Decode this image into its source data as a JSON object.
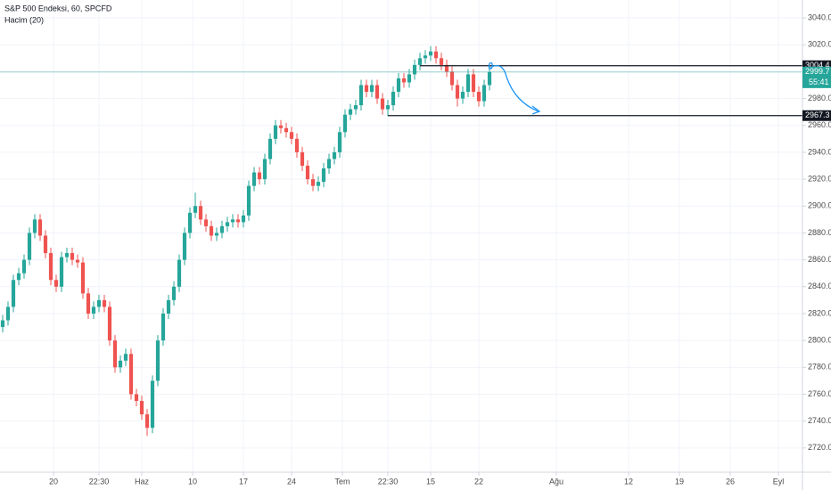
{
  "chart_data": {
    "type": "candlestick",
    "title": "S&P 500 Endeksi, 60, SPCFD",
    "subtitle": "Hacim (20)",
    "up_color": "#26a69a",
    "down_color": "#ef5350",
    "x": [
      0,
      1,
      2,
      3,
      4,
      5,
      6,
      7,
      8,
      9,
      10,
      11,
      12,
      13,
      14,
      15,
      16,
      17,
      18,
      19,
      20,
      21,
      22,
      23,
      24,
      25,
      26,
      27,
      28,
      29,
      30,
      31,
      32,
      33,
      34,
      35,
      36,
      37,
      38,
      39,
      40,
      41,
      42,
      43,
      44,
      45,
      46,
      47,
      48,
      49,
      50,
      51,
      52,
      53,
      54,
      55,
      56,
      57,
      58,
      59,
      60,
      61,
      62,
      63,
      64,
      65,
      66,
      67,
      68,
      69,
      70,
      71,
      72,
      73,
      74,
      75,
      76,
      77,
      78,
      79,
      80,
      81,
      82,
      83,
      84,
      85,
      86,
      87,
      88,
      89,
      90,
      91
    ],
    "open": [
      2810,
      2815,
      2825,
      2845,
      2850,
      2860,
      2880,
      2890,
      2878,
      2865,
      2845,
      2840,
      2862,
      2865,
      2860,
      2858,
      2835,
      2820,
      2825,
      2830,
      2825,
      2800,
      2780,
      2785,
      2790,
      2760,
      2755,
      2745,
      2735,
      2770,
      2800,
      2820,
      2830,
      2840,
      2860,
      2880,
      2895,
      2900,
      2890,
      2885,
      2878,
      2880,
      2885,
      2888,
      2890,
      2888,
      2893,
      2915,
      2925,
      2920,
      2935,
      2950,
      2960,
      2958,
      2955,
      2950,
      2940,
      2930,
      2920,
      2915,
      2918,
      2928,
      2935,
      2940,
      2955,
      2968,
      2972,
      2975,
      2990,
      2985,
      2990,
      2980,
      2972,
      2975,
      2985,
      2995,
      2992,
      2998,
      3005,
      3010,
      3012,
      3015,
      3010,
      3005,
      3000,
      2990,
      2980,
      2985,
      2998,
      2985,
      2978,
      2990
    ],
    "high": [
      2819,
      2829,
      2849,
      2854,
      2864,
      2884,
      2894,
      2894,
      2882,
      2869,
      2849,
      2866,
      2869,
      2869,
      2864,
      2862,
      2839,
      2829,
      2834,
      2834,
      2829,
      2804,
      2789,
      2794,
      2794,
      2764,
      2759,
      2749,
      2774,
      2804,
      2824,
      2834,
      2844,
      2864,
      2884,
      2899,
      2910,
      2904,
      2894,
      2889,
      2884,
      2889,
      2892,
      2894,
      2894,
      2897,
      2919,
      2929,
      2929,
      2939,
      2954,
      2964,
      2964,
      2962,
      2959,
      2954,
      2944,
      2934,
      2924,
      2922,
      2932,
      2939,
      2944,
      2959,
      2972,
      2976,
      2979,
      2994,
      2994,
      2994,
      2994,
      2984,
      2979,
      2989,
      2999,
      2999,
      3002,
      3009,
      3014,
      3016,
      3019,
      3019,
      3014,
      3009,
      3004,
      2994,
      2989,
      3002,
      3002,
      2989,
      2994,
      3004
    ],
    "low": [
      2806,
      2811,
      2821,
      2841,
      2846,
      2856,
      2876,
      2874,
      2861,
      2841,
      2836,
      2836,
      2858,
      2856,
      2854,
      2831,
      2816,
      2816,
      2821,
      2821,
      2796,
      2776,
      2776,
      2781,
      2756,
      2751,
      2741,
      2729,
      2731,
      2766,
      2796,
      2816,
      2826,
      2836,
      2856,
      2876,
      2891,
      2886,
      2881,
      2874,
      2874,
      2876,
      2881,
      2884,
      2884,
      2884,
      2889,
      2911,
      2916,
      2916,
      2931,
      2946,
      2954,
      2951,
      2946,
      2936,
      2926,
      2916,
      2911,
      2911,
      2914,
      2924,
      2931,
      2936,
      2951,
      2964,
      2968,
      2971,
      2981,
      2981,
      2976,
      2968,
      2967,
      2971,
      2981,
      2988,
      2988,
      2994,
      3001,
      3006,
      3008,
      3006,
      3001,
      2996,
      2986,
      2974,
      2976,
      2981,
      2981,
      2974,
      2974,
      2986
    ],
    "close": [
      2815,
      2825,
      2845,
      2850,
      2860,
      2880,
      2890,
      2878,
      2865,
      2845,
      2840,
      2862,
      2865,
      2860,
      2858,
      2835,
      2820,
      2825,
      2830,
      2825,
      2800,
      2780,
      2785,
      2790,
      2760,
      2755,
      2745,
      2735,
      2770,
      2800,
      2820,
      2830,
      2840,
      2860,
      2880,
      2895,
      2900,
      2890,
      2885,
      2878,
      2880,
      2885,
      2888,
      2890,
      2888,
      2893,
      2915,
      2925,
      2920,
      2935,
      2950,
      2960,
      2958,
      2955,
      2950,
      2940,
      2930,
      2920,
      2915,
      2918,
      2928,
      2935,
      2940,
      2955,
      2968,
      2972,
      2975,
      2990,
      2985,
      2990,
      2980,
      2972,
      2975,
      2985,
      2995,
      2992,
      2998,
      3005,
      3010,
      3012,
      3015,
      3010,
      3005,
      3000,
      2990,
      2980,
      2985,
      2998,
      2985,
      2978,
      2990,
      2999.7
    ],
    "xlim": [
      -0.5,
      149.5
    ],
    "xticks": [
      {
        "value": 9.5,
        "label": "20"
      },
      {
        "value": 18,
        "label": "22:30"
      },
      {
        "value": 26,
        "label": "Haz"
      },
      {
        "value": 35.5,
        "label": "10"
      },
      {
        "value": 45,
        "label": "17"
      },
      {
        "value": 54,
        "label": "24"
      },
      {
        "value": 63.5,
        "label": "Tem"
      },
      {
        "value": 72,
        "label": "22:30"
      },
      {
        "value": 80,
        "label": "15"
      },
      {
        "value": 89,
        "label": "22"
      },
      {
        "value": 103.5,
        "label": "Ağu"
      },
      {
        "value": 117,
        "label": "12"
      },
      {
        "value": 126.5,
        "label": "19"
      },
      {
        "value": 136,
        "label": "26"
      },
      {
        "value": 145,
        "label": "Eyl"
      }
    ],
    "ylim": [
      2702,
      3053.3
    ],
    "yticks": [
      {
        "value": 2720,
        "label": "2720.0"
      },
      {
        "value": 2740,
        "label": "2740.0"
      },
      {
        "value": 2760,
        "label": "2760.0"
      },
      {
        "value": 2780,
        "label": "2780.0"
      },
      {
        "value": 2800,
        "label": "2800.0"
      },
      {
        "value": 2820,
        "label": "2820.0"
      },
      {
        "value": 2840,
        "label": "2840.0"
      },
      {
        "value": 2860,
        "label": "2860.0"
      },
      {
        "value": 2880,
        "label": "2880.0"
      },
      {
        "value": 2900,
        "label": "2900.0"
      },
      {
        "value": 2920,
        "label": "2920.0"
      },
      {
        "value": 2940,
        "label": "2940.0"
      },
      {
        "value": 2960,
        "label": "2960.0"
      },
      {
        "value": 2980,
        "label": "2980.0"
      },
      {
        "value": 3000,
        "label": "3000.0"
      },
      {
        "value": 3020,
        "label": "3020.0"
      },
      {
        "value": 3040,
        "label": "3040.0"
      }
    ],
    "grid": true,
    "levels": [
      3004.4,
      2967.3
    ],
    "last_price": 2999.7,
    "countdown": "55:41"
  }
}
